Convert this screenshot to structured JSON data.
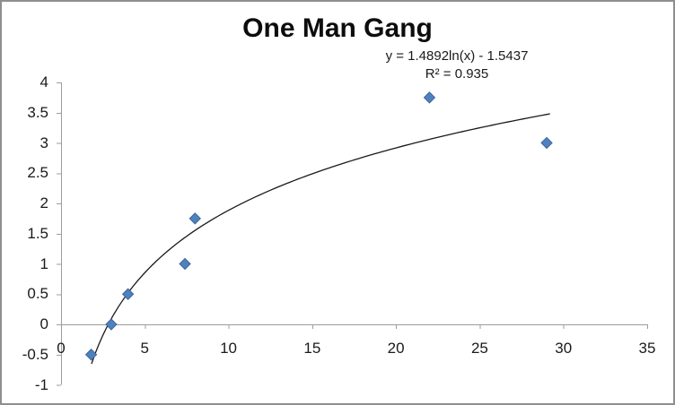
{
  "chart": {
    "title": "One Man Gang"
  },
  "chart_data": {
    "type": "scatter",
    "title": "One Man Gang",
    "points": [
      {
        "x": 1.8,
        "y": -0.5
      },
      {
        "x": 3,
        "y": 0
      },
      {
        "x": 4,
        "y": 0.5
      },
      {
        "x": 7.4,
        "y": 1
      },
      {
        "x": 8,
        "y": 1.75
      },
      {
        "x": 22,
        "y": 3.75
      },
      {
        "x": 29,
        "y": 3
      }
    ],
    "xlabel": "",
    "ylabel": "",
    "xlim": [
      0,
      35
    ],
    "ylim": [
      -1,
      4
    ],
    "x_ticks": [
      0,
      5,
      10,
      15,
      20,
      25,
      30,
      35
    ],
    "y_ticks": [
      -1,
      -0.5,
      0,
      0.5,
      1,
      1.5,
      2,
      2.5,
      3,
      3.5,
      4
    ],
    "grid": false,
    "legend": false,
    "marker": {
      "shape": "diamond",
      "size": 12,
      "fill": "#4f81bd",
      "stroke": "#3a679d"
    },
    "trendline": {
      "type": "logarithmic",
      "slope": 1.4892,
      "intercept": -1.5437,
      "equation": "y = 1.4892ln(x) - 1.5437",
      "r2": "R² = 0.935",
      "x_start": 1.82,
      "x_end": 29.2,
      "color": "#1a1a1a"
    },
    "colors": {
      "axis": "#9c9c9c",
      "text": "#1a1a1a",
      "background": "#ffffff",
      "border": "#8f8f8f"
    }
  }
}
